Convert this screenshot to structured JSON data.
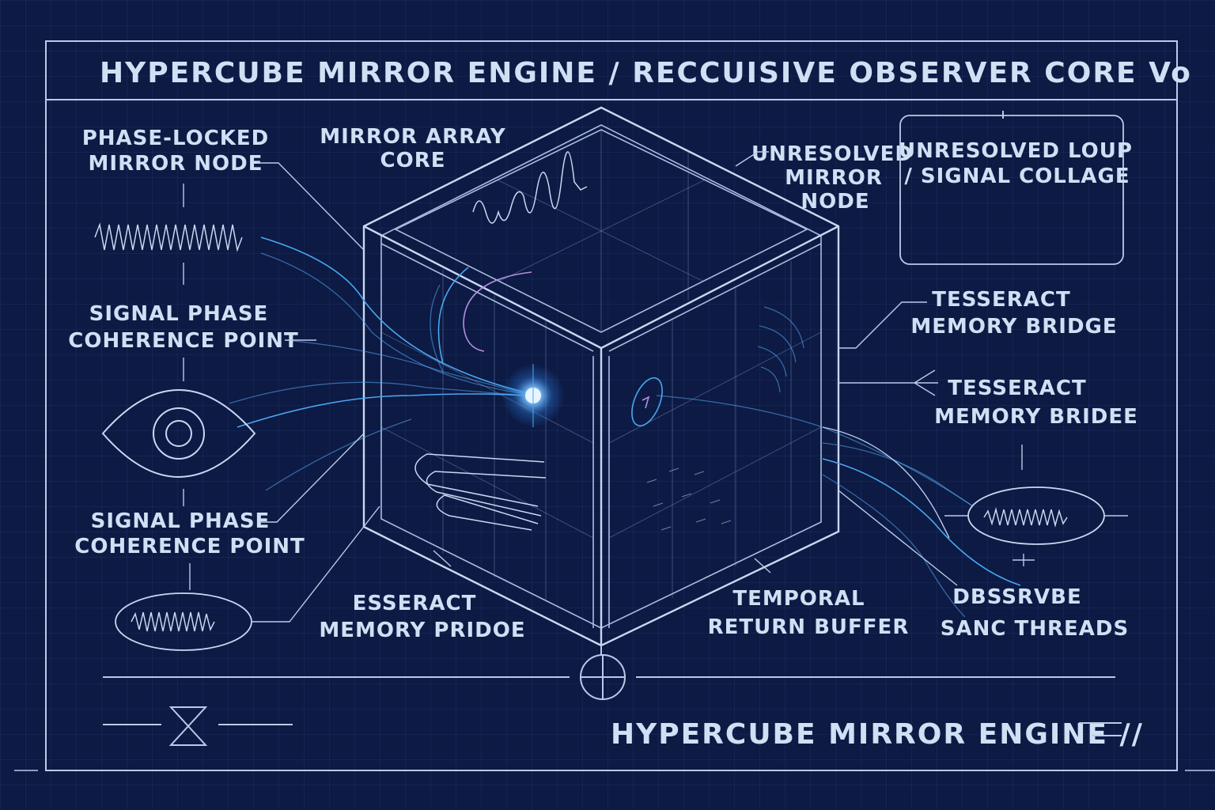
{
  "header": {
    "title": "HYPERCUBE MIRROR ENGINE / RECCUISIVE OBSERVER CORE Vo"
  },
  "footer": {
    "title": "HYPERCUBE MIRROR ENGINE //"
  },
  "labels": {
    "phase_locked": [
      "PHASE-LOCKED",
      "MIRROR NODE"
    ],
    "mirror_array": [
      "MIRROR ARRAY",
      "CORE"
    ],
    "unresolved_node": [
      "UNRESOLVED",
      "MIRROR",
      "NODE"
    ],
    "unresolved_loop": [
      "UNRESOLVED LOUP",
      "/ SIGNAL COLLAGE"
    ],
    "signal_phase_1": [
      "SIGNAL PHASE",
      "COHERENCE POINT"
    ],
    "signal_phase_2": [
      "SIGNAL PHASE",
      "COHERENCE POINT"
    ],
    "tesseract_1": [
      "TESSERACT",
      "MEMORY BRIDGE"
    ],
    "tesseract_2": [
      "TESSERACT",
      "MEMORY BRIDEE"
    ],
    "esseract": [
      "ESSERACT",
      "MEMORY PRIDOE"
    ],
    "temporal": [
      "TEMPORAL",
      "RETURN BUFFER"
    ],
    "observe": [
      "DBSSRVBE",
      "SANC THREADS"
    ]
  },
  "colors": {
    "background": "#0c1a44",
    "line": "#c9d8f0",
    "accent_blue": "#4aa7f0",
    "accent_pink": "#b58fe0",
    "text": "#cfe0f4"
  },
  "icons": [
    "eye-icon",
    "hourglass-icon",
    "crosshair-icon",
    "waveform-icon"
  ]
}
